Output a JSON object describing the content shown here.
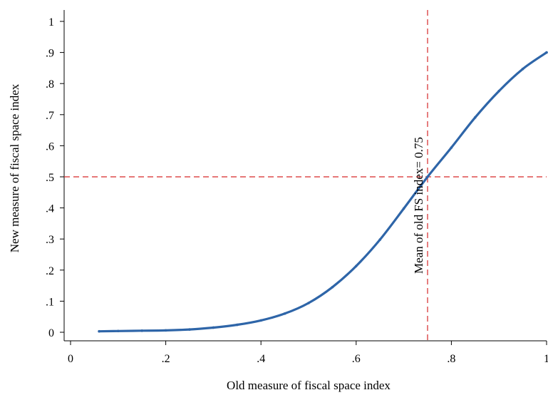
{
  "chart_data": {
    "type": "line",
    "title": "",
    "xlabel": "Old measure of fiscal space index",
    "ylabel": "New measure of fiscal space index",
    "xlim": [
      0,
      1
    ],
    "ylim": [
      0,
      1
    ],
    "x_ticks": [
      "0",
      ".2",
      ".4",
      ".6",
      ".8",
      "1"
    ],
    "x_tick_values": [
      0,
      0.2,
      0.4,
      0.6,
      0.8,
      1
    ],
    "y_ticks": [
      "0",
      ".1",
      ".2",
      ".3",
      ".4",
      ".5",
      ".6",
      ".7",
      ".8",
      ".9",
      "1"
    ],
    "y_tick_values": [
      0,
      0.1,
      0.2,
      0.3,
      0.4,
      0.5,
      0.6,
      0.7,
      0.8,
      0.9,
      1
    ],
    "grid": false,
    "series": [
      {
        "color": "#2e65a8",
        "x": [
          0.06,
          0.1,
          0.15,
          0.2,
          0.25,
          0.3,
          0.35,
          0.4,
          0.45,
          0.5,
          0.55,
          0.6,
          0.65,
          0.7,
          0.75,
          0.8,
          0.85,
          0.9,
          0.95,
          1.0
        ],
        "y": [
          0.003,
          0.004,
          0.005,
          0.006,
          0.009,
          0.015,
          0.024,
          0.038,
          0.06,
          0.094,
          0.145,
          0.213,
          0.298,
          0.398,
          0.5,
          0.594,
          0.691,
          0.776,
          0.847,
          0.9
        ]
      }
    ],
    "reference_lines": [
      {
        "orientation": "vertical",
        "value": 0.75,
        "color": "#d62728",
        "style": "dashed"
      },
      {
        "orientation": "horizontal",
        "value": 0.5,
        "color": "#d62728",
        "style": "dashed"
      }
    ],
    "annotations": [
      {
        "text": "Mean of old FS index= 0.75",
        "x": 0.75,
        "y": 0.5,
        "orientation": "vertical"
      }
    ]
  }
}
